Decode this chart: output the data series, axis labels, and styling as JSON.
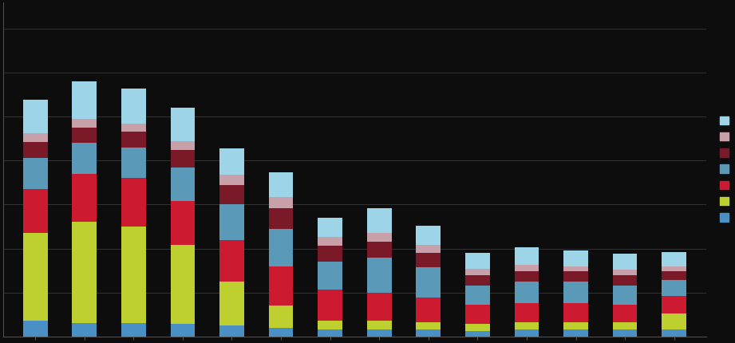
{
  "background_color": "#0d0d0d",
  "bar_width": 0.5,
  "gridline_color": "#3a3a3a",
  "colors_ordered": [
    "#4a90c4",
    "#bdd02f",
    "#cc1a30",
    "#5a9ab8",
    "#7a1a28",
    "#c8a0aa",
    "#9ed4e8"
  ],
  "legend_colors": [
    "#9ed4e8",
    "#c8a0aa",
    "#7a1a28",
    "#5a9ab8",
    "#cc1a30",
    "#bdd02f",
    "#4a90c4"
  ],
  "stacks": [
    [
      18,
      100,
      50,
      35,
      18,
      10,
      38
    ],
    [
      15,
      115,
      55,
      35,
      18,
      10,
      42
    ],
    [
      15,
      110,
      55,
      35,
      18,
      9,
      40
    ],
    [
      14,
      90,
      50,
      38,
      20,
      10,
      38
    ],
    [
      12,
      50,
      48,
      40,
      22,
      12,
      30
    ],
    [
      10,
      25,
      45,
      42,
      24,
      13,
      28
    ],
    [
      8,
      10,
      35,
      32,
      18,
      10,
      22
    ],
    [
      8,
      10,
      32,
      40,
      18,
      10,
      28
    ],
    [
      8,
      8,
      28,
      35,
      16,
      9,
      22
    ],
    [
      6,
      8,
      22,
      22,
      12,
      7,
      18
    ],
    [
      8,
      8,
      22,
      24,
      12,
      7,
      20
    ],
    [
      8,
      8,
      22,
      24,
      12,
      6,
      18
    ],
    [
      8,
      8,
      20,
      22,
      12,
      6,
      18
    ],
    [
      8,
      18,
      20,
      18,
      10,
      6,
      16
    ]
  ],
  "ylim": [
    0,
    380
  ],
  "n_bars": 14,
  "grid_y": [
    0,
    50,
    100,
    150,
    200,
    250,
    300,
    350
  ]
}
